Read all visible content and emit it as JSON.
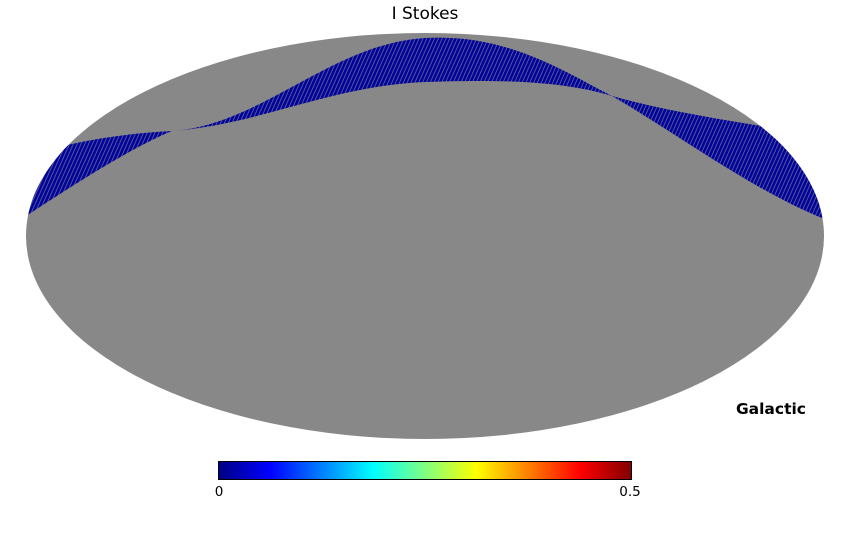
{
  "figure": {
    "title": "I Stokes",
    "coordinate_label": "Galactic"
  },
  "map": {
    "background_color": "#888888",
    "scan_band_color": "#000299"
  },
  "colorbar": {
    "tick_min": "0",
    "tick_max": "0.5",
    "colormap": "jet",
    "stops": [
      "#000083",
      "#0000ff",
      "#0080ff",
      "#00ffff",
      "#80ff80",
      "#ffff00",
      "#ff8000",
      "#ff0000",
      "#800000"
    ]
  },
  "chart_data": {
    "type": "heatmap",
    "title": "I Stokes",
    "projection": "mollweide",
    "coordinate_system": "Galactic",
    "colorbar": {
      "min": 0,
      "max": 0.5,
      "colormap": "jet"
    },
    "unobserved_region": "full sky shown as uniform gray (no data)",
    "observed_region": "narrow sinusoidal scan band sweeping across the northern part of the map, pinching to nodes at upper-left and upper-right, with pixel values near 0 (dark blue end of colormap)"
  }
}
